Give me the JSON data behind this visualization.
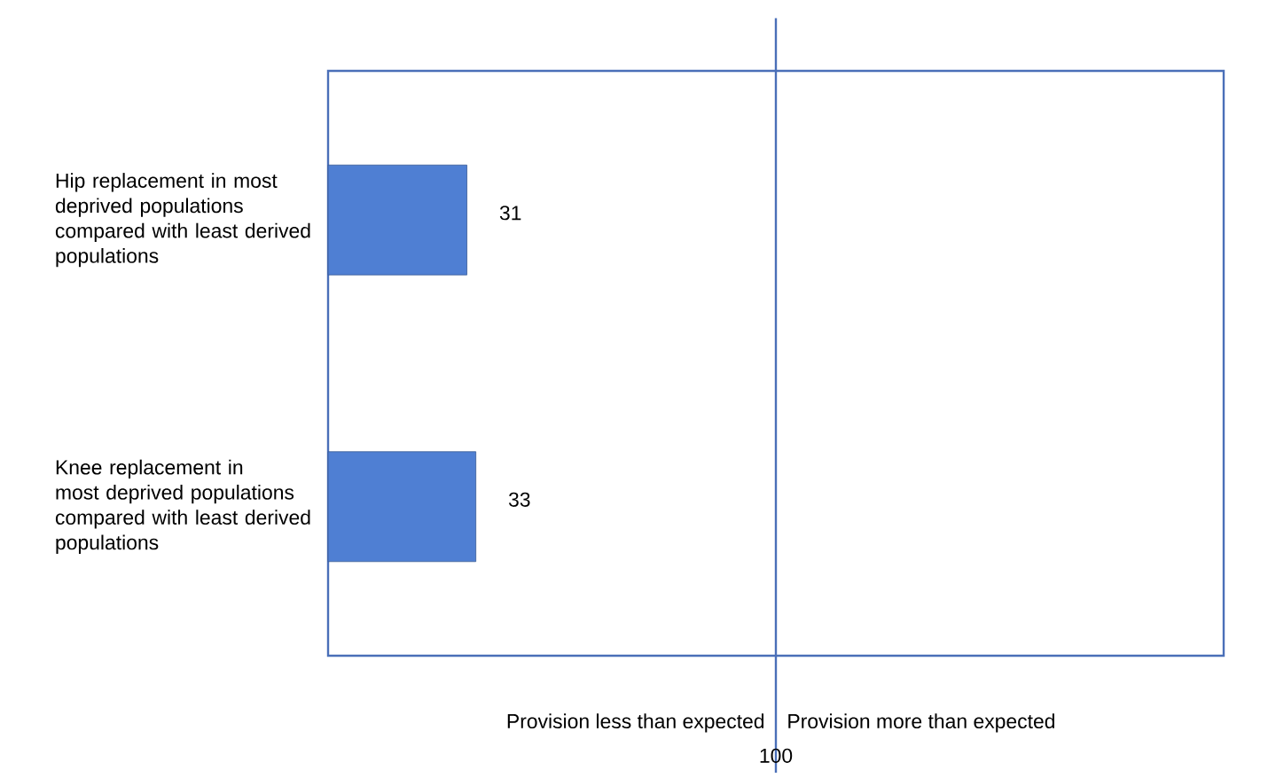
{
  "chart_data": {
    "type": "bar",
    "orientation": "horizontal",
    "categories": [
      "Hip replacement in most deprived populations compared with least derived populations",
      "Knee replacement in most deprived populations compared with least derived populations"
    ],
    "values": [
      31,
      33
    ],
    "color": "#4f7fd3",
    "data_labels": true,
    "xlim": [
      0,
      200
    ],
    "tick_labels": "y",
    "ref_lines": [
      {
        "axis": "x",
        "value": 100,
        "label": "100",
        "color": "#4a6fb8"
      }
    ],
    "annotations": [
      "Provision less than expected",
      "Provision  more than expected"
    ]
  }
}
